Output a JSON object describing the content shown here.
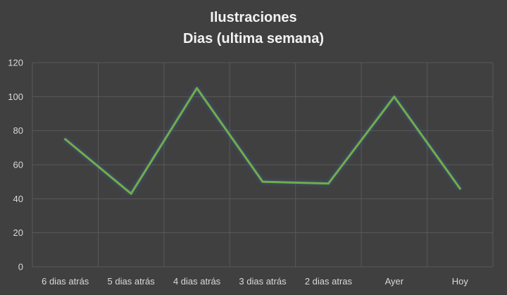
{
  "chart_data": {
    "type": "line",
    "title": "Ilustraciones",
    "subtitle": "Dias (ultima semana)",
    "categories": [
      "6 dias atrás",
      "5 dias atrás",
      "4 dias atrás",
      "3 dias atrás",
      "2 dias atras",
      "Ayer",
      "Hoy"
    ],
    "series": [
      {
        "values": [
          75,
          43,
          105,
          50,
          49,
          100,
          46
        ]
      }
    ],
    "ylim": [
      0,
      120
    ],
    "yticks": [
      0,
      20,
      40,
      60,
      80,
      100,
      120
    ],
    "grid": true,
    "legend": "none",
    "colors": {
      "background": "#404040",
      "line": "#70ad47",
      "grid": "#595959",
      "text": "#d9d9d9",
      "title": "#f2f2f2"
    }
  }
}
